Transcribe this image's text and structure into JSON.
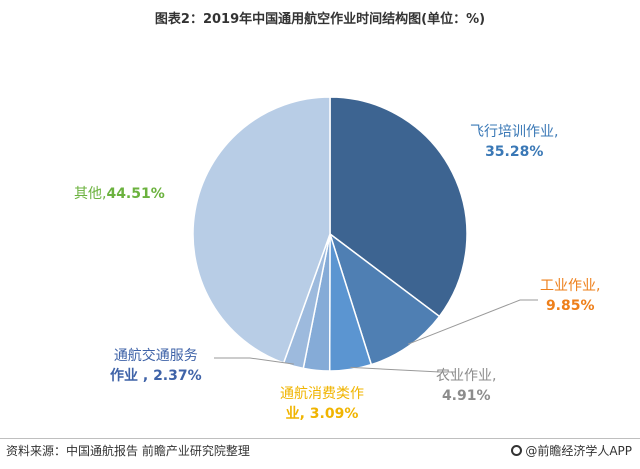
{
  "title": "图表2：2019年中国通用航空作业时间结构图(单位：%)",
  "source": "资料来源：中国通航报告 前瞻产业研究院整理",
  "brand": "@前瞻经济学人APP",
  "chart_data": {
    "type": "pie",
    "title": "图表2：2019年中国通用航空作业时间结构图(单位：%)",
    "unit": "%",
    "slices": [
      {
        "label": "飞行培训作业,",
        "value_text": "35.28%",
        "value": 35.28,
        "color": "#3d6491",
        "label_color": "#3a78b6"
      },
      {
        "label": "工业作业,",
        "value_text": "9.85%",
        "value": 9.85,
        "color": "#4f7fb3",
        "label_color": "#ee7f1a"
      },
      {
        "label": "农业作业,",
        "value_text": "4.91%",
        "value": 4.91,
        "color": "#5b95d1",
        "label_color": "#8c8c8c"
      },
      {
        "label": "通航消费类作",
        "value_text": "业, 3.09%",
        "value": 3.09,
        "color": "#85abd7",
        "label_color": "#f0b400"
      },
      {
        "label": "通航交通服务",
        "value_text": "作业 , 2.37%",
        "value": 2.37,
        "color": "#9dbadd",
        "label_color": "#3f63a8"
      },
      {
        "label": "其他,",
        "value_text": "44.51%",
        "value": 44.51,
        "color": "#b8cde6",
        "label_color": "#6bb23e"
      }
    ]
  }
}
